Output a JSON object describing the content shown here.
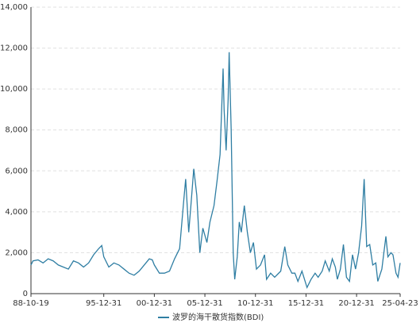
{
  "chart_data": {
    "type": "line",
    "x": [
      1988.8,
      1989,
      1989.5,
      1990,
      1990.5,
      1991,
      1991.5,
      1992,
      1992.5,
      1993,
      1993.5,
      1994,
      1994.5,
      1995,
      1995.5,
      1995.8,
      1996,
      1996.5,
      1997,
      1997.5,
      1998,
      1998.5,
      1999,
      1999.5,
      2000,
      2000.5,
      2000.8,
      2001,
      2001.5,
      2002,
      2002.5,
      2003,
      2003.5,
      2003.9,
      2004.1,
      2004.4,
      2004.6,
      2004.9,
      2005.2,
      2005.5,
      2005.8,
      2006.2,
      2006.5,
      2006.9,
      2007.2,
      2007.5,
      2007.8,
      2007.9,
      2008.1,
      2008.3,
      2008.4,
      2008.6,
      2008.8,
      2008.95,
      2009.2,
      2009.4,
      2009.6,
      2009.9,
      2010.2,
      2010.5,
      2010.8,
      2011.1,
      2011.5,
      2011.9,
      2012.1,
      2012.5,
      2012.9,
      2013.5,
      2013.9,
      2014.2,
      2014.6,
      2014.9,
      2015.2,
      2015.6,
      2016.1,
      2016.5,
      2016.9,
      2017.2,
      2017.6,
      2017.9,
      2018.3,
      2018.6,
      2018.9,
      2019.1,
      2019.4,
      2019.7,
      2020.0,
      2020.3,
      2020.6,
      2020.9,
      2021.2,
      2021.5,
      2021.75,
      2022.0,
      2022.3,
      2022.6,
      2022.9,
      2023.1,
      2023.5,
      2023.9,
      2024.1,
      2024.4,
      2024.6,
      2024.9,
      2025.1,
      2025.31
    ],
    "series": [
      {
        "name": "波罗的海干散货指数(BDI)",
        "color": "#2f7ea3",
        "values": [
          1400,
          1600,
          1650,
          1500,
          1700,
          1600,
          1400,
          1300,
          1200,
          1600,
          1500,
          1300,
          1500,
          1900,
          2200,
          2350,
          1800,
          1300,
          1500,
          1400,
          1200,
          1000,
          900,
          1100,
          1400,
          1700,
          1650,
          1400,
          1000,
          1000,
          1100,
          1700,
          2200,
          4500,
          5600,
          3000,
          4200,
          6100,
          4800,
          2000,
          3200,
          2500,
          3500,
          4300,
          5500,
          6800,
          11000,
          9000,
          7000,
          9500,
          11800,
          8000,
          2000,
          700,
          1800,
          3500,
          3000,
          4300,
          3000,
          2000,
          2500,
          1200,
          1400,
          1900,
          700,
          1000,
          800,
          1100,
          2300,
          1400,
          1000,
          1000,
          600,
          1100,
          300,
          700,
          1000,
          800,
          1100,
          1600,
          1100,
          1700,
          1300,
          700,
          1200,
          2400,
          800,
          600,
          1900,
          1200,
          2000,
          3300,
          5600,
          2300,
          2400,
          1400,
          1500,
          600,
          1200,
          2800,
          1800,
          2000,
          1900,
          1000,
          800,
          1500
        ]
      }
    ],
    "xlim": [
      1988.8,
      2025.31
    ],
    "xticks": [
      {
        "value": 1988.8,
        "label": "88-10-19"
      },
      {
        "value": 1996,
        "label": "95-12-31"
      },
      {
        "value": 2001,
        "label": "00-12-31"
      },
      {
        "value": 2006,
        "label": "05-12-31"
      },
      {
        "value": 2011,
        "label": "10-12-31"
      },
      {
        "value": 2016,
        "label": "15-12-31"
      },
      {
        "value": 2021,
        "label": "20-12-31"
      },
      {
        "value": 2025.31,
        "label": "25-04-23"
      }
    ],
    "ylim": [
      0,
      14000
    ],
    "yticks": [
      0,
      {
        "value": 2000,
        "label": "2,000"
      },
      {
        "value": 4000,
        "label": "4,000"
      },
      {
        "value": 6000,
        "label": "6,000"
      },
      {
        "value": 8000,
        "label": "8,000"
      },
      {
        "value": 10000,
        "label": "10,000"
      },
      {
        "value": 12000,
        "label": "12,000"
      },
      {
        "value": 14000,
        "label": "14,000"
      }
    ],
    "grid": true,
    "legend": "bottom"
  }
}
